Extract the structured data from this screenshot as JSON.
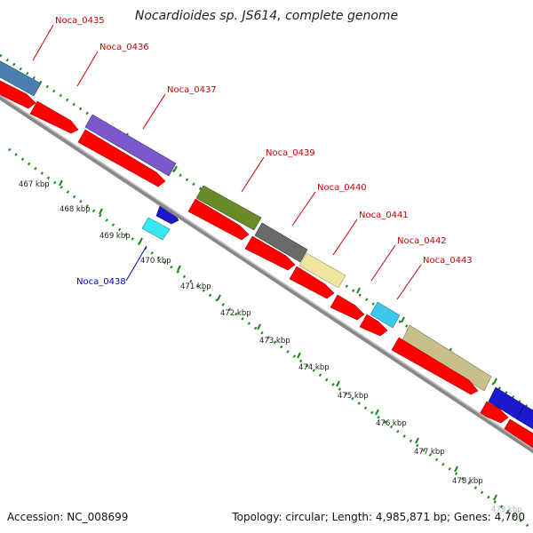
{
  "title": "Nocardioides sp. JS614, complete genome",
  "footer": {
    "accession": "Accession: NC_008699",
    "topology": "Topology: circular; Length: 4,985,871 bp; Genes: 4,700"
  },
  "colors": {
    "forward_cds": "#ff0000",
    "label_forward": "#cc0000",
    "label_reverse": "#0000cc",
    "backbone": "#888888",
    "tick_marks": "#1a8a1a"
  },
  "gene_labels": [
    {
      "name": "Noca_0435",
      "color": "#cc0000"
    },
    {
      "name": "Noca_0436",
      "color": "#cc0000"
    },
    {
      "name": "Noca_0437",
      "color": "#cc0000"
    },
    {
      "name": "Noca_0439",
      "color": "#cc0000"
    },
    {
      "name": "Noca_0440",
      "color": "#cc0000"
    },
    {
      "name": "Noca_0441",
      "color": "#cc0000"
    },
    {
      "name": "Noca_0442",
      "color": "#cc0000"
    },
    {
      "name": "Noca_0443",
      "color": "#cc0000"
    },
    {
      "name": "Noca_0438",
      "color": "#0000cc"
    }
  ],
  "cog_boxes": [
    {
      "color": "#4a7fb0"
    },
    {
      "color": "#7b59cc"
    },
    {
      "color": "#6b8a2a"
    },
    {
      "color": "#6a6a6a"
    },
    {
      "color": "#f0e6a0"
    },
    {
      "color": "#3ec8f0"
    },
    {
      "color": "#c8c08a"
    },
    {
      "color": "#1a1acc"
    },
    {
      "color": "#1a1acc"
    },
    {
      "color": "#38e8f0"
    },
    {
      "color": "#1a1acc"
    }
  ],
  "kbp_ticks": [
    "467 kbp",
    "468 kbp",
    "469 kbp",
    "470 kbp",
    "471 kbp",
    "472 kbp",
    "473 kbp",
    "474 kbp",
    "475 kbp",
    "476 kbp",
    "477 kbp",
    "478 kbp",
    "479 kbp"
  ]
}
